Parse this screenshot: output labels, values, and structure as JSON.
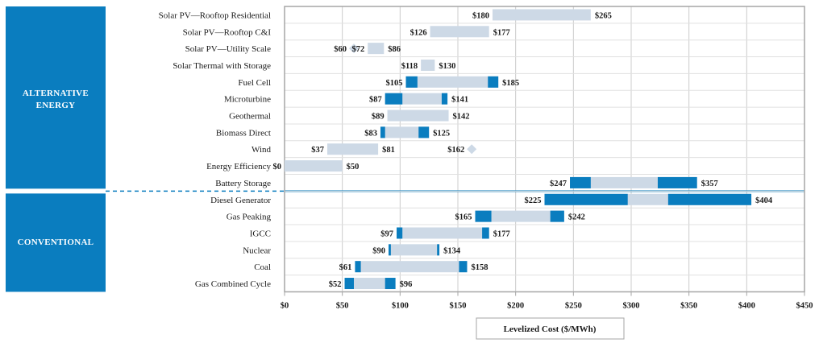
{
  "chart_data": {
    "type": "bar",
    "orientation": "horizontal-range",
    "xlabel": "Levelized Cost ($/MWh)",
    "xlim": [
      0,
      450
    ],
    "xticks": [
      0,
      50,
      100,
      150,
      200,
      250,
      300,
      350,
      400,
      450
    ],
    "xtick_labels": [
      "$0",
      "$50",
      "$100",
      "$150",
      "$200",
      "$250",
      "$300",
      "$350",
      "$400",
      "$450"
    ],
    "grid": "vertical",
    "colors": {
      "group_box": "#0a7dbf",
      "range_bar": "#cdd9e6",
      "highlight": "#0a7dbf",
      "diamond": "#cdd9e6",
      "grid": "#cccccc",
      "frame": "#a6a6a6"
    },
    "groups": [
      {
        "label": "ALTERNATIVE ENERGY",
        "label_lines": [
          "ALTERNATIVE",
          "ENERGY"
        ],
        "rows": [
          {
            "category": "Solar PV—Rooftop Residential",
            "low": 180,
            "high": 265,
            "low_label": "$180",
            "high_label": "$265",
            "segments": []
          },
          {
            "category": "Solar PV—Rooftop C&I",
            "low": 126,
            "high": 177,
            "low_label": "$126",
            "high_label": "$177",
            "segments": []
          },
          {
            "category": "Solar PV—Utility Scale",
            "low": 72,
            "high": 86,
            "low_label": "$72",
            "high_label": "$86",
            "segments": [],
            "marker": {
              "value": 60,
              "label": "$60"
            }
          },
          {
            "category": "Solar Thermal with Storage",
            "low": 118,
            "high": 130,
            "low_label": "$118",
            "high_label": "$130",
            "segments": []
          },
          {
            "category": "Fuel Cell",
            "low": 105,
            "high": 185,
            "low_label": "$105",
            "high_label": "$185",
            "segments": [
              [
                105,
                115
              ],
              [
                176,
                185
              ]
            ]
          },
          {
            "category": "Microturbine",
            "low": 87,
            "high": 141,
            "low_label": "$87",
            "high_label": "$141",
            "segments": [
              [
                87,
                102
              ],
              [
                136,
                141
              ]
            ]
          },
          {
            "category": "Geothermal",
            "low": 89,
            "high": 142,
            "low_label": "$89",
            "high_label": "$142",
            "segments": []
          },
          {
            "category": "Biomass Direct",
            "low": 83,
            "high": 125,
            "low_label": "$83",
            "high_label": "$125",
            "segments": [
              [
                83,
                87
              ],
              [
                116,
                125
              ]
            ]
          },
          {
            "category": "Wind",
            "low": 37,
            "high": 81,
            "low_label": "$37",
            "high_label": "$81",
            "segments": [],
            "marker": {
              "value": 162,
              "label": "$162"
            }
          },
          {
            "category": "Energy Efficiency",
            "low": 0,
            "high": 50,
            "low_label": "$0",
            "high_label": "$50",
            "segments": []
          },
          {
            "category": "Battery Storage",
            "low": 247,
            "high": 357,
            "low_label": "$247",
            "high_label": "$357",
            "segments": [
              [
                247,
                265
              ],
              [
                323,
                357
              ]
            ]
          }
        ]
      },
      {
        "label": "CONVENTIONAL",
        "label_lines": [
          "CONVENTIONAL"
        ],
        "rows": [
          {
            "category": "Diesel Generator",
            "low": 225,
            "high": 404,
            "low_label": "$225",
            "high_label": "$404",
            "segments": [
              [
                225,
                297
              ],
              [
                332,
                404
              ]
            ]
          },
          {
            "category": "Gas Peaking",
            "low": 165,
            "high": 242,
            "low_label": "$165",
            "high_label": "$242",
            "segments": [
              [
                165,
                179
              ],
              [
                230,
                242
              ]
            ]
          },
          {
            "category": "IGCC",
            "low": 97,
            "high": 177,
            "low_label": "$97",
            "high_label": "$177",
            "segments": [
              [
                97,
                102
              ],
              [
                171,
                177
              ]
            ]
          },
          {
            "category": "Nuclear",
            "low": 90,
            "high": 134,
            "low_label": "$90",
            "high_label": "$134",
            "segments": [
              [
                90,
                92
              ],
              [
                132,
                134
              ]
            ]
          },
          {
            "category": "Coal",
            "low": 61,
            "high": 158,
            "low_label": "$61",
            "high_label": "$158",
            "segments": [
              [
                61,
                66
              ],
              [
                151,
                158
              ]
            ]
          },
          {
            "category": "Gas Combined Cycle",
            "low": 52,
            "high": 96,
            "low_label": "$52",
            "high_label": "$96",
            "segments": [
              [
                52,
                60
              ],
              [
                87,
                96
              ]
            ]
          }
        ]
      }
    ]
  }
}
